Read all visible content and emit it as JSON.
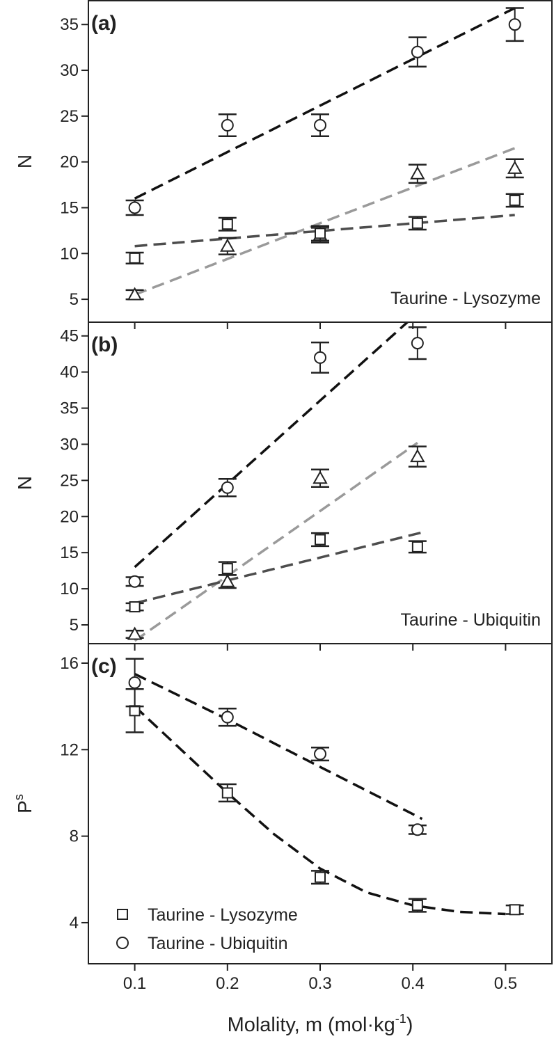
{
  "chart_data": [
    {
      "type": "scatter",
      "panel_label": "(a)",
      "ylabel": "N",
      "annotation": "Taurine - Lysozyme",
      "xlim": [
        0.05,
        0.55
      ],
      "xticks": [
        0.1,
        0.2,
        0.3,
        0.4,
        0.5
      ],
      "ylim": [
        2.5,
        37.6
      ],
      "yticks": [
        5,
        10,
        15,
        20,
        25,
        30,
        35
      ],
      "x": [
        0.1,
        0.2,
        0.3,
        0.405,
        0.51
      ],
      "series": [
        {
          "marker": "circle",
          "color": "#222222",
          "values": [
            15,
            24,
            24,
            32,
            35
          ],
          "errors": [
            0.8,
            1.2,
            1.2,
            1.6,
            1.8
          ]
        },
        {
          "marker": "triangle",
          "color": "#222222",
          "values": [
            5.5,
            10.8,
            12,
            18.7,
            19.3
          ],
          "errors": [
            0.5,
            0.9,
            0.8,
            1,
            1
          ]
        },
        {
          "marker": "square",
          "color": "#222222",
          "values": [
            9.5,
            13.2,
            12.2,
            13.3,
            15.8
          ],
          "errors": [
            0.6,
            0.7,
            0.8,
            0.7,
            0.7
          ]
        }
      ],
      "fits": [
        {
          "color": "#111111",
          "x": [
            0.1,
            0.51
          ],
          "values": [
            16,
            36.8
          ]
        },
        {
          "color": "#9a9a9a",
          "x": [
            0.1,
            0.51
          ],
          "values": [
            5.5,
            21.5
          ]
        },
        {
          "color": "#4d4d4d",
          "x": [
            0.1,
            0.51
          ],
          "values": [
            10.8,
            14.2
          ]
        }
      ]
    },
    {
      "type": "scatter",
      "panel_label": "(b)",
      "ylabel": "N",
      "annotation": "Taurine - Ubiquitin",
      "xlim": [
        0.05,
        0.55
      ],
      "xticks": [
        0.1,
        0.2,
        0.3,
        0.4,
        0.5
      ],
      "ylim": [
        2.4,
        46.9
      ],
      "yticks": [
        5,
        10,
        15,
        20,
        25,
        30,
        35,
        40,
        45
      ],
      "x": [
        0.1,
        0.2,
        0.3,
        0.405
      ],
      "series": [
        {
          "marker": "circle",
          "color": "#222222",
          "values": [
            11,
            24,
            42,
            44
          ],
          "errors": [
            0.6,
            1.2,
            2.1,
            2.2
          ]
        },
        {
          "marker": "triangle",
          "color": "#222222",
          "values": [
            3.7,
            11,
            25.3,
            28.3
          ],
          "errors": [
            0.5,
            0.9,
            1.2,
            1.4
          ]
        },
        {
          "marker": "square",
          "color": "#222222",
          "values": [
            7.5,
            12.8,
            16.8,
            15.8
          ],
          "errors": [
            0.5,
            0.9,
            0.9,
            0.8
          ]
        }
      ],
      "fits": [
        {
          "color": "#111111",
          "x": [
            0.1,
            0.395
          ],
          "values": [
            13,
            47
          ]
        },
        {
          "color": "#9a9a9a",
          "x": [
            0.1,
            0.405
          ],
          "values": [
            2.8,
            30.2
          ]
        },
        {
          "color": "#4d4d4d",
          "x": [
            0.1,
            0.41
          ],
          "values": [
            8,
            17.8
          ]
        }
      ]
    },
    {
      "type": "scatter",
      "panel_label": "(c)",
      "ylabel": "P",
      "ylabel_superscript": "s",
      "xlabel": "Molality, m (mol·kg",
      "xlabel_superscript": "-1",
      "xlabel_suffix": ")",
      "xlim": [
        0.05,
        0.55
      ],
      "xticks": [
        0.1,
        0.2,
        0.3,
        0.4,
        0.5
      ],
      "ylim": [
        2.1,
        16.9
      ],
      "yticks": [
        4,
        8,
        12,
        16
      ],
      "x": [
        0.1,
        0.2,
        0.3,
        0.405,
        0.51
      ],
      "series": [
        {
          "name": "Taurine - Lysozyme",
          "marker": "square",
          "color": "#222222",
          "values": [
            13.8,
            10,
            6.1,
            4.8,
            4.6
          ],
          "errors": [
            1.0,
            0.4,
            0.3,
            0.3,
            0.2
          ]
        },
        {
          "name": "Taurine - Ubiquitin",
          "marker": "circle",
          "color": "#222222",
          "values": [
            15.1,
            13.5,
            11.8,
            8.3,
            null
          ],
          "errors": [
            1.1,
            0.4,
            0.3,
            0.2,
            null
          ]
        }
      ],
      "fits": [
        {
          "color": "#111111",
          "x": [
            0.1,
            0.2,
            0.3,
            0.41
          ],
          "values": [
            15.5,
            13.4,
            11.2,
            8.8
          ]
        },
        {
          "color": "#111111",
          "x": [
            0.1,
            0.15,
            0.2,
            0.25,
            0.3,
            0.35,
            0.4,
            0.45,
            0.5
          ],
          "values": [
            14,
            12,
            10,
            8.1,
            6.5,
            5.4,
            4.8,
            4.5,
            4.4
          ]
        }
      ]
    }
  ]
}
